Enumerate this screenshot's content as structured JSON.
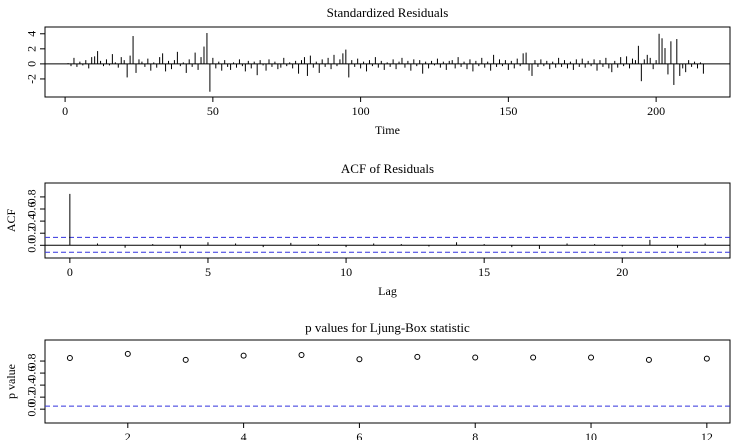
{
  "chart_data": [
    {
      "type": "spike",
      "title": "Standardized Residuals",
      "xlabel": "Time",
      "x": [
        1,
        2,
        3,
        4,
        5,
        6,
        7,
        8,
        9,
        10,
        11,
        12,
        13,
        14,
        15,
        16,
        17,
        18,
        19,
        20,
        21,
        22,
        23,
        24,
        25,
        26,
        27,
        28,
        29,
        30,
        31,
        32,
        33,
        34,
        35,
        36,
        37,
        38,
        39,
        40,
        41,
        42,
        43,
        44,
        45,
        46,
        47,
        48,
        49,
        50,
        51,
        52,
        53,
        54,
        55,
        56,
        57,
        58,
        59,
        60,
        61,
        62,
        63,
        64,
        65,
        66,
        67,
        68,
        69,
        70,
        71,
        72,
        73,
        74,
        75,
        76,
        77,
        78,
        79,
        80,
        81,
        82,
        83,
        84,
        85,
        86,
        87,
        88,
        89,
        90,
        91,
        92,
        93,
        94,
        95,
        96,
        97,
        98,
        99,
        100,
        101,
        102,
        103,
        104,
        105,
        106,
        107,
        108,
        109,
        110,
        111,
        112,
        113,
        114,
        115,
        116,
        117,
        118,
        119,
        120,
        121,
        122,
        123,
        124,
        125,
        126,
        127,
        128,
        129,
        130,
        131,
        132,
        133,
        134,
        135,
        136,
        137,
        138,
        139,
        140,
        141,
        142,
        143,
        144,
        145,
        146,
        147,
        148,
        149,
        150,
        151,
        152,
        153,
        154,
        155,
        156,
        157,
        158,
        159,
        160,
        161,
        162,
        163,
        164,
        165,
        166,
        167,
        168,
        169,
        170,
        171,
        172,
        173,
        174,
        175,
        176,
        177,
        178,
        179,
        180,
        181,
        182,
        183,
        184,
        185,
        186,
        187,
        188,
        189,
        190,
        191,
        192,
        193,
        194,
        195,
        196,
        197,
        198,
        199,
        200,
        201,
        202,
        203,
        204,
        205,
        206,
        207,
        208,
        209,
        210,
        211,
        212,
        213,
        214,
        215,
        216
      ],
      "values": [
        0.1,
        -0.3,
        0.8,
        -0.4,
        0.3,
        -0.2,
        0.5,
        -0.6,
        0.9,
        1.0,
        1.7,
        0.4,
        -0.3,
        0.6,
        -0.2,
        1.3,
        0.2,
        -0.5,
        0.9,
        0.5,
        -1.8,
        1.1,
        3.7,
        -1.2,
        0.6,
        0.3,
        -0.4,
        0.7,
        -0.9,
        0.2,
        -0.5,
        0.9,
        1.4,
        -1.0,
        0.4,
        -0.7,
        0.5,
        1.6,
        -0.3,
        0.2,
        -1.2,
        0.6,
        -0.4,
        1.5,
        -0.8,
        0.9,
        2.3,
        4.1,
        -3.7,
        0.8,
        -0.6,
        0.3,
        -0.9,
        0.5,
        -0.4,
        -0.8,
        0.2,
        -0.5,
        0.6,
        -0.3,
        -1.0,
        0.4,
        -0.6,
        0.3,
        -1.5,
        0.5,
        -0.2,
        -0.9,
        0.6,
        -0.4,
        0.3,
        -0.7,
        -0.5,
        0.8,
        -0.3,
        0.2,
        -0.6,
        0.4,
        -1.3,
        0.5,
        0.9,
        -1.6,
        1.1,
        -0.5,
        0.3,
        -1.2,
        0.6,
        -0.4,
        0.8,
        -0.7,
        1.2,
        -0.3,
        0.6,
        1.4,
        1.9,
        -1.8,
        0.5,
        -0.4,
        0.7,
        -0.6,
        0.3,
        -1.0,
        0.5,
        -0.3,
        0.9,
        -0.5,
        0.4,
        -0.8,
        0.2,
        -0.4,
        0.6,
        -0.7,
        0.3,
        0.8,
        -0.5,
        0.4,
        -0.9,
        0.6,
        -0.3,
        0.5,
        -1.3,
        0.3,
        -0.6,
        0.4,
        -0.2,
        0.7,
        -0.5,
        0.3,
        -0.8,
        0.4,
        0.5,
        -0.6,
        0.9,
        -0.4,
        0.3,
        -0.7,
        0.6,
        -1.0,
        0.4,
        -0.3,
        0.8,
        -0.5,
        0.3,
        -0.9,
        1.2,
        -0.4,
        0.6,
        -0.3,
        0.5,
        -0.8,
        0.4,
        -0.6,
        0.7,
        -0.3,
        1.4,
        1.5,
        -0.9,
        -1.6,
        0.5,
        -0.4,
        0.6,
        -0.3,
        0.4,
        -0.7,
        0.3,
        -0.5,
        0.8,
        -0.4,
        0.5,
        -0.6,
        0.3,
        -0.8,
        0.6,
        -0.4,
        0.7,
        -0.5,
        0.4,
        -0.3,
        0.6,
        -0.9,
        0.5,
        -0.4,
        0.8,
        -0.6,
        -1.1,
        0.4,
        -0.5,
        0.9,
        -0.3,
        1.0,
        -0.6,
        0.7,
        0.5,
        2.4,
        -2.3,
        0.6,
        1.2,
        0.8,
        -0.7,
        0.5,
        4.0,
        3.4,
        2.1,
        -1.4,
        3.0,
        -2.8,
        3.3,
        -1.6,
        -0.6,
        -1.1,
        0.5,
        -0.4,
        0.3,
        -0.6,
        0.2,
        -1.3
      ],
      "baseline": 0,
      "color": "#000000",
      "xlim": [
        -6.8,
        225
      ],
      "xticks": [
        0,
        50,
        100,
        150,
        200
      ],
      "ylim": [
        -4.4,
        4.9
      ],
      "yticks": [
        -2,
        0,
        2,
        4
      ]
    },
    {
      "type": "spike",
      "title": "ACF of Residuals",
      "xlabel": "Lag",
      "ylabel": "ACF",
      "x": [
        0,
        1,
        2,
        3,
        4,
        5,
        6,
        7,
        8,
        9,
        10,
        11,
        12,
        13,
        14,
        15,
        16,
        17,
        18,
        19,
        20,
        21,
        22,
        23
      ],
      "values": [
        0.85,
        0.03,
        -0.04,
        0.02,
        -0.05,
        0.05,
        0.03,
        -0.03,
        0.04,
        0.02,
        -0.03,
        0.03,
        0.02,
        -0.02,
        0.05,
        0.02,
        -0.03,
        -0.06,
        0.03,
        0.02,
        -0.02,
        0.09,
        -0.04,
        0.03
      ],
      "baseline": 0,
      "color": "#000000",
      "ref_lines": [
        0.13,
        -0.115
      ],
      "ref_color": "#3333dd",
      "xlim": [
        -0.9,
        23.9
      ],
      "xticks": [
        0,
        5,
        10,
        15,
        20
      ],
      "ylim": [
        -0.21,
        1.03
      ],
      "yticks": [
        {
          "value": 0,
          "label": "0.0"
        },
        0.2,
        0.4,
        0.6,
        0.8
      ]
    },
    {
      "type": "scatter",
      "title": "p values for Ljung-Box statistic",
      "ylabel": "p value",
      "x": [
        1,
        2,
        3,
        4,
        5,
        6,
        7,
        8,
        9,
        10,
        11,
        12
      ],
      "values": [
        0.85,
        0.92,
        0.82,
        0.89,
        0.9,
        0.83,
        0.87,
        0.86,
        0.86,
        0.86,
        0.82,
        0.84
      ],
      "color": "#000000",
      "ref_lines": [
        0.05
      ],
      "ref_color": "#3333dd",
      "xlim": [
        0.57,
        12.4
      ],
      "xticks": [
        2,
        4,
        6,
        8,
        10,
        12
      ],
      "ylim": [
        -0.23,
        1.15
      ],
      "yticks": [
        {
          "value": 0,
          "label": "0.0"
        },
        0.2,
        0.4,
        0.6,
        0.8
      ]
    }
  ]
}
